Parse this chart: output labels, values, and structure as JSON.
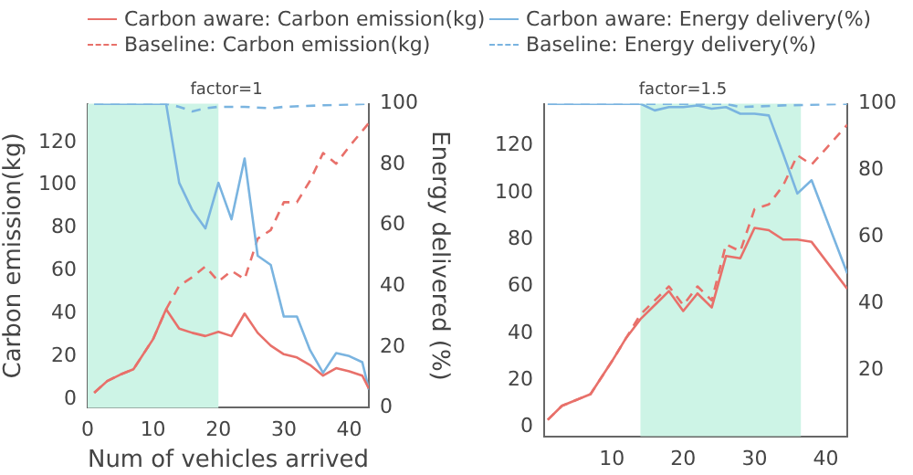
{
  "chart_data": [
    {
      "type": "line",
      "title": "factor=1",
      "xlabel": "Num of vehicles arrived",
      "ylabel": "Carbon emission(kg)",
      "y2label": "Energy delivered (%)",
      "legend": "top",
      "grid": false,
      "marker": "none",
      "xlim": [
        0,
        43
      ],
      "xticks": [
        0,
        10,
        20,
        30,
        40
      ],
      "ylim": [
        -4,
        138
      ],
      "yticks": [
        0,
        20,
        40,
        60,
        80,
        100,
        120
      ],
      "y2lim": [
        0,
        100
      ],
      "y2ticks": [
        0,
        20,
        40,
        60,
        80,
        100
      ],
      "bands": [
        {
          "axis": "x",
          "from": 0,
          "to": 20,
          "color": "#cdf4e6"
        }
      ],
      "series": [
        {
          "name": "Carbon aware: Carbon emission(kg)",
          "color": "#e8706a",
          "line_style": "solid",
          "x": [
            1,
            3,
            5,
            7,
            10,
            12,
            14,
            16,
            18,
            20,
            22,
            24,
            26,
            28,
            30,
            32,
            34,
            36,
            38,
            40,
            42,
            43
          ],
          "values": [
            3,
            8.5,
            11.5,
            14,
            28,
            42,
            33,
            31,
            29.5,
            31.5,
            29.5,
            40,
            31,
            25,
            21,
            19.5,
            16,
            11,
            14.5,
            13,
            11,
            5
          ]
        },
        {
          "name": "Carbon aware: Energy delivery(%)",
          "color": "#7ab4e0",
          "line_style": "solid",
          "axis": "y2",
          "x": [
            1,
            12,
            14,
            16,
            18,
            20,
            22,
            24,
            26,
            28,
            30,
            32,
            34,
            36,
            38,
            40,
            42,
            43
          ],
          "values": [
            100,
            100,
            74,
            65,
            59,
            74,
            62,
            82,
            50,
            47,
            30,
            30,
            19,
            11.5,
            18,
            17,
            15,
            6
          ]
        },
        {
          "name": "Baseline: Carbon emission(kg)",
          "color": "#e8706a",
          "line_style": "dashed",
          "x": [
            1,
            3,
            5,
            7,
            10,
            12,
            14,
            16,
            18,
            20,
            22,
            24,
            26,
            28,
            30,
            32,
            34,
            36,
            38,
            40,
            43
          ],
          "values": [
            3,
            8.5,
            11.5,
            14,
            28,
            42,
            53,
            57,
            62,
            55,
            60,
            56,
            75,
            79,
            92,
            92,
            102,
            115,
            110,
            118,
            129
          ]
        },
        {
          "name": "Baseline: Energy delivery(%)",
          "color": "#7ab4e0",
          "line_style": "dashed",
          "axis": "y2",
          "x": [
            1,
            12,
            14,
            16,
            18,
            20,
            24,
            28,
            30,
            36,
            43
          ],
          "values": [
            100,
            100,
            99,
            97.5,
            98.5,
            99,
            99,
            98.5,
            99,
            99.5,
            100
          ]
        }
      ]
    },
    {
      "type": "line",
      "title": "factor=1.5",
      "legend": false,
      "grid": false,
      "marker": "none",
      "xlim": [
        0.5,
        43
      ],
      "xticks": [
        10,
        20,
        30,
        40
      ],
      "ylim": [
        -4,
        138
      ],
      "yticks": [
        0,
        20,
        40,
        60,
        80,
        100,
        120
      ],
      "y2lim": [
        0,
        100
      ],
      "y2ticks": [
        20,
        40,
        60,
        80,
        100
      ],
      "bands": [
        {
          "axis": "x",
          "from": 14,
          "to": 36.5,
          "color": "#cdf4e6"
        }
      ],
      "series": [
        {
          "color": "#e8706a",
          "line_style": "solid",
          "x": [
            1,
            3,
            7,
            10,
            12,
            14,
            16,
            18,
            20,
            22,
            24,
            26,
            28,
            30,
            32,
            34,
            36,
            38,
            43
          ],
          "values": [
            3,
            9,
            14,
            28,
            38,
            46,
            52,
            58,
            49.5,
            57,
            51,
            73,
            72,
            85,
            84,
            80,
            80,
            79,
            59
          ]
        },
        {
          "color": "#7ab4e0",
          "line_style": "solid",
          "axis": "y2",
          "x": [
            1,
            14,
            16,
            18,
            20,
            22,
            24,
            26,
            28,
            30,
            32,
            34,
            36,
            38,
            43
          ],
          "values": [
            100,
            100,
            98,
            99,
            99,
            99.5,
            98.5,
            99,
            97,
            97,
            96.5,
            85,
            73,
            77,
            49
          ]
        },
        {
          "color": "#e8706a",
          "line_style": "dashed",
          "x": [
            1,
            3,
            7,
            10,
            12,
            14,
            16,
            18,
            20,
            22,
            24,
            26,
            28,
            30,
            32,
            34,
            36,
            38,
            43
          ],
          "values": [
            3,
            9,
            14,
            28,
            38,
            48,
            54,
            60,
            52,
            60,
            54,
            78,
            75,
            93,
            95,
            103,
            116,
            112,
            129
          ]
        },
        {
          "color": "#7ab4e0",
          "line_style": "dashed",
          "axis": "y2",
          "x": [
            1,
            26,
            28,
            34,
            43
          ],
          "values": [
            100,
            100,
            99,
            99.5,
            100
          ]
        }
      ]
    }
  ]
}
